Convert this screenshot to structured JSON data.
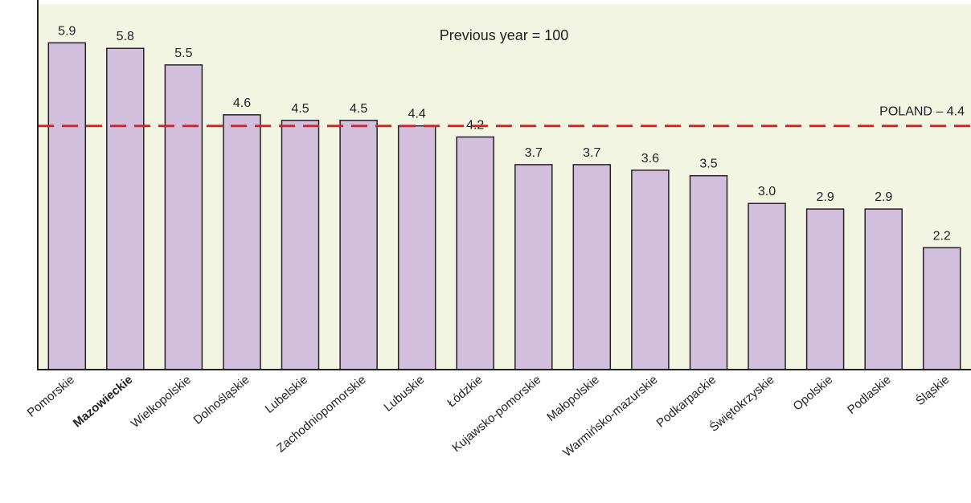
{
  "chart_data": {
    "type": "bar",
    "categories": [
      "Pomorskie",
      "Mazowieckie",
      "Wielkopolskie",
      "Dolnośląskie",
      "Lubelskie",
      "Zachodniopomorskie",
      "Lubuskie",
      "Łódzkie",
      "Kujawsko-pomorskie",
      "Małopolskie",
      "Warmińsko-mazurskie",
      "Podkarpackie",
      "Świętokrzyskie",
      "Opolskie",
      "Podlaskie",
      "Śląskie"
    ],
    "values": [
      5.9,
      5.8,
      5.5,
      4.6,
      4.5,
      4.5,
      4.4,
      4.2,
      3.7,
      3.7,
      3.6,
      3.5,
      3.0,
      2.9,
      2.9,
      2.2
    ],
    "value_labels": [
      "5.9",
      "5.8",
      "5.5",
      "4.6",
      "4.5",
      "4.5",
      "4.4",
      "4.2",
      "3.7",
      "3.7",
      "3.6",
      "3.5",
      "3.0",
      "2.9",
      "2.9",
      "2.2"
    ],
    "highlighted_category": "Mazowieckie",
    "annotation": "Previous year = 100",
    "reference_line": {
      "value": 4.4,
      "label": "POLAND – 4.4",
      "color": "#e02020",
      "style": "dashed"
    },
    "ylim": [
      0,
      6.6
    ],
    "bar_color": "#d1bfdd",
    "bar_edge_color": "#222222",
    "background_color": "#f1f5e2",
    "grid": false
  }
}
